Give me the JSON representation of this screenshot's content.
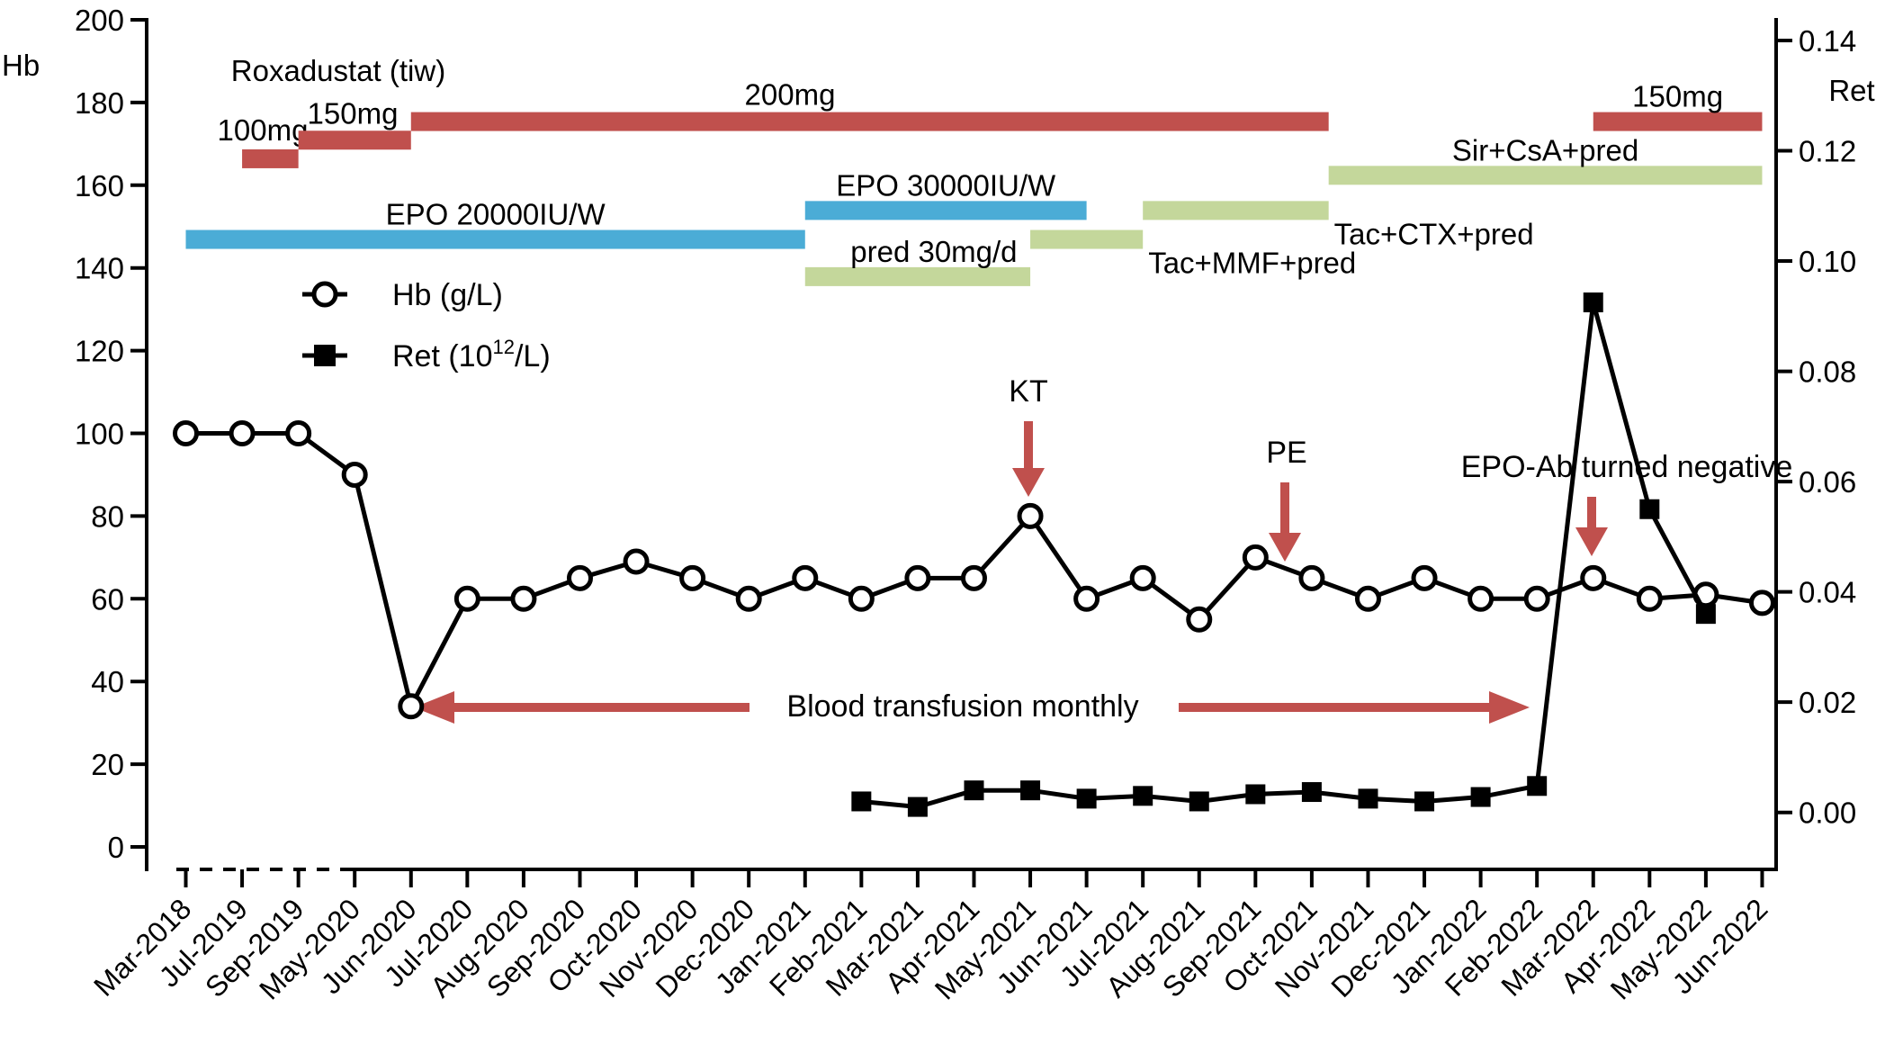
{
  "chart_data": {
    "type": "line",
    "categories": [
      "Mar-2018",
      "Jul-2019",
      "Sep-2019",
      "May-2020",
      "Jun-2020",
      "Jul-2020",
      "Aug-2020",
      "Sep-2020",
      "Oct-2020",
      "Nov-2020",
      "Dec-2020",
      "Jan-2021",
      "Feb-2021",
      "Mar-2021",
      "Apr-2021",
      "May-2021",
      "Jun-2021",
      "Jul-2021",
      "Aug-2021",
      "Sep-2021",
      "Oct-2021",
      "Nov-2021",
      "Dec-2021",
      "Jan-2022",
      "Feb-2022",
      "Mar-2022",
      "Apr-2022",
      "May-2022",
      "Jun-2022"
    ],
    "left_axis": {
      "label": "Hb",
      "ylim": [
        0,
        200
      ],
      "ticks": [
        0,
        20,
        40,
        60,
        80,
        100,
        120,
        140,
        160,
        180,
        200
      ]
    },
    "right_axis": {
      "label": "Ret",
      "ylim": [
        -0.00625,
        0.14375
      ],
      "ticks": [
        "0.00",
        "0.02",
        "0.04",
        "0.06",
        "0.08",
        "0.10",
        "0.12",
        "0.14"
      ]
    },
    "series": [
      {
        "name": "Hb (g/L)",
        "axis": "left",
        "marker": "open-circle",
        "values": [
          100,
          100,
          100,
          90,
          34,
          60,
          60,
          65,
          69,
          65,
          60,
          65,
          60,
          65,
          65,
          80,
          60,
          65,
          55,
          70,
          65,
          60,
          65,
          60,
          60,
          65,
          60,
          61,
          59
        ]
      },
      {
        "name": "Ret (10",
        "name_sup": "12",
        "name_tail": "/L)",
        "axis": "right",
        "marker": "filled-square",
        "values": [
          null,
          null,
          null,
          null,
          null,
          null,
          null,
          null,
          null,
          null,
          null,
          null,
          0.002,
          0.001,
          0.004,
          0.004,
          0.0025,
          0.003,
          0.002,
          0.0033,
          0.0037,
          0.0025,
          0.002,
          0.0028,
          0.0048,
          0.0925,
          0.055,
          0.036,
          null
        ]
      }
    ],
    "treatment_bars": [
      {
        "label": "100mg",
        "color": "#c0504d",
        "start": 1.0,
        "end": 2.0,
        "level": 166.5
      },
      {
        "label": "150mg",
        "color": "#c0504d",
        "start": 2.0,
        "end": 4.0,
        "level": 171
      },
      {
        "label": "200mg",
        "color": "#c0504d",
        "start": 4.0,
        "end": 20.3,
        "level": 175.5
      },
      {
        "label": "150mg",
        "color": "#c0504d",
        "start": 25.0,
        "end": 28.0,
        "level": 175.5
      },
      {
        "label": "EPO 20000IU/W",
        "color": "#4bacd6",
        "start": 0.0,
        "end": 11.0,
        "level": 147
      },
      {
        "label": "EPO 30000IU/W",
        "color": "#4bacd6",
        "start": 11.0,
        "end": 16.0,
        "level": 154
      },
      {
        "label": "pred 30mg/d",
        "color": "#c4d79b",
        "start": 11.0,
        "end": 15.0,
        "level": 138
      },
      {
        "label": "Tac+MMF+pred",
        "color": "#c4d79b",
        "start": 15.0,
        "end": 17.0,
        "level": 147
      },
      {
        "label": "Tac+CTX+pred",
        "color": "#c4d79b",
        "start": 17.0,
        "end": 20.3,
        "level": 154
      },
      {
        "label": "Sir+CsA+pred",
        "color": "#c4d79b",
        "start": 20.3,
        "end": 28.0,
        "level": 162.5
      }
    ],
    "roxadustat_title": "Roxadustat (tiw)",
    "annotations": [
      {
        "text": "KT",
        "index": 15,
        "color": "#c0504d"
      },
      {
        "text": "PE",
        "index": 19.5,
        "color": "#c0504d"
      },
      {
        "text": "EPO-Ab turned negative",
        "index": 25,
        "color": "#c0504d"
      }
    ],
    "transfusion_label": "Blood transfusion monthly",
    "colors": {
      "red": "#c0504d",
      "blue": "#4bacd6",
      "green": "#c4d79b",
      "line": "#000000"
    }
  }
}
